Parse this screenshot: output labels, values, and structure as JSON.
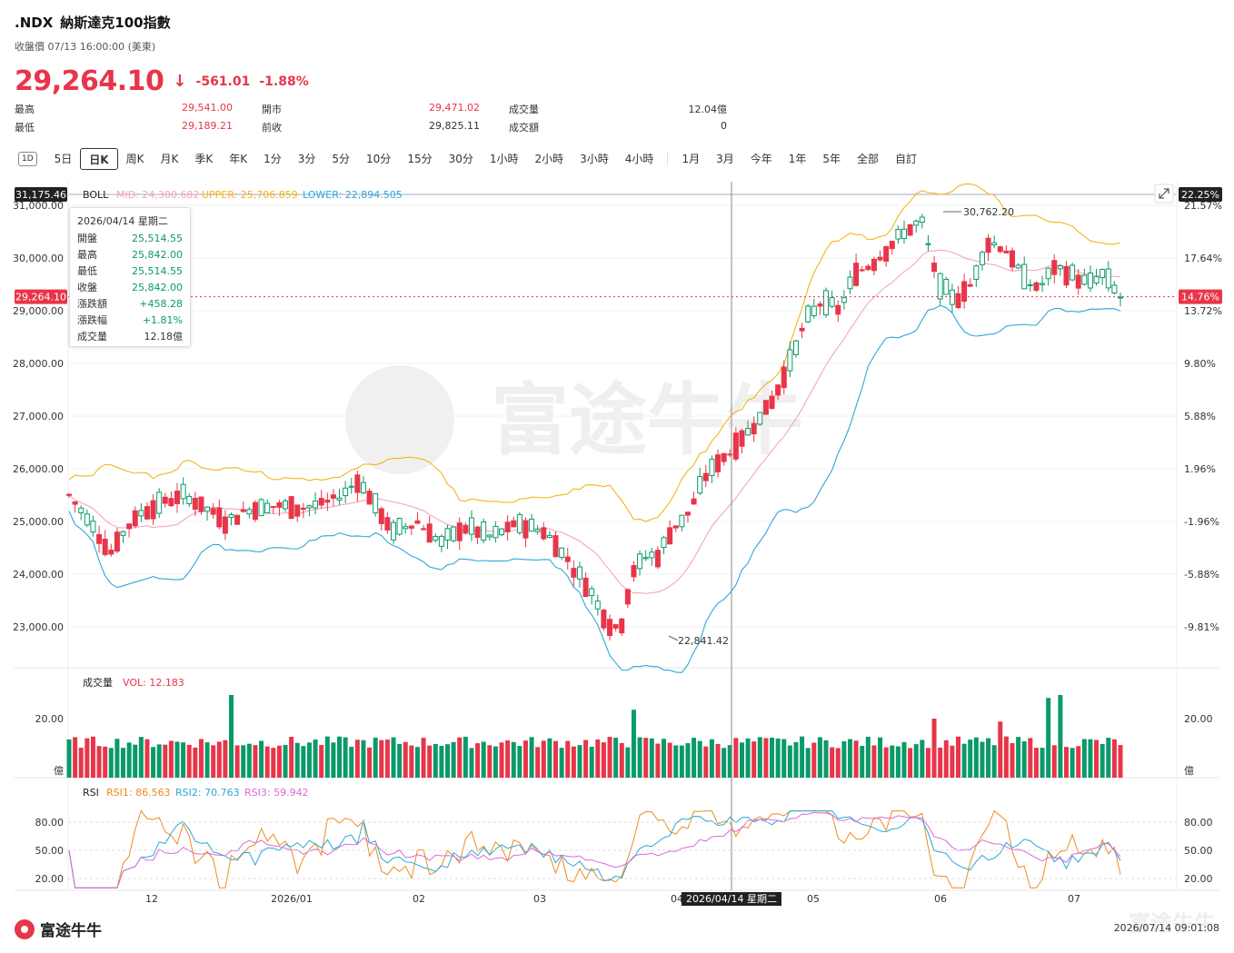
{
  "header": {
    "symbol": ".NDX",
    "name": "納斯達克100指數",
    "status": "收盤價 07/13 16:00:00 (美東)",
    "price": "29,264.10",
    "change": "-561.01",
    "change_pct": "-1.88%"
  },
  "stats": {
    "high_label": "最高",
    "high_value": "29,541.00",
    "low_label": "最低",
    "low_value": "29,189.21",
    "open_label": "開市",
    "open_value": "29,471.02",
    "prev_label": "前收",
    "prev_value": "29,825.11",
    "volume_label": "成交量",
    "volume_value": "12.04億",
    "turnover_label": "成交額",
    "turnover_value": "0"
  },
  "periods": [
    "5日",
    "日K",
    "周K",
    "月K",
    "季K",
    "年K",
    "1分",
    "3分",
    "5分",
    "10分",
    "15分",
    "30分",
    "1小時",
    "2小時",
    "3小時",
    "4小時",
    "1月",
    "3月",
    "今年",
    "1年",
    "5年",
    "全部",
    "自訂"
  ],
  "period_icon_label": "1D",
  "boll": {
    "label": "BOLL",
    "mid": "MID: 24,300.682",
    "upper": "UPPER: 25,706.859",
    "lower": "LOWER: 22,894.505",
    "top_price_tag": "31,175.46",
    "top_pct_tag": "22.25%",
    "current_price_tag": "29,264.10",
    "current_pct_tag": "14.76%",
    "high_annotation": "30,762.20",
    "low_annotation": "22,841.42"
  },
  "price_axis": [
    "31,000.00",
    "30,000.00",
    "29,000.00",
    "28,000.00",
    "27,000.00",
    "26,000.00",
    "25,000.00",
    "24,000.00",
    "23,000.00"
  ],
  "pct_axis": [
    "21.57%",
    "17.64%",
    "13.72%",
    "9.80%",
    "5.88%",
    "1.96%",
    "-1.96%",
    "-5.88%",
    "-9.81%"
  ],
  "tooltip": {
    "date": "2026/04/14 星期二",
    "rows": [
      {
        "k": "開盤",
        "v": "25,514.55"
      },
      {
        "k": "最高",
        "v": "25,842.00"
      },
      {
        "k": "最低",
        "v": "25,514.55"
      },
      {
        "k": "收盤",
        "v": "25,842.00"
      },
      {
        "k": "漲跌額",
        "v": "+458.28"
      },
      {
        "k": "漲跌幅",
        "v": "+1.81%"
      },
      {
        "k": "成交量",
        "v": "12.18億"
      }
    ]
  },
  "volume_panel": {
    "label": "成交量",
    "vol": "VOL: 12.183",
    "axis_top": "20.00",
    "axis_unit": "億"
  },
  "rsi_panel": {
    "label": "RSI",
    "rsi1": "RSI1: 86.563",
    "rsi2": "RSI2: 70.763",
    "rsi3": "RSI3: 59.942",
    "axis": [
      "80.00",
      "50.00",
      "20.00"
    ]
  },
  "x_axis": [
    "12",
    "2026/01",
    "02",
    "03",
    "04",
    "05",
    "06",
    "07"
  ],
  "crosshair_date": "2026/04/14 星期二",
  "footer": {
    "brand": "富途牛牛",
    "timestamp": "2026/07/14 09:01:08"
  },
  "colors": {
    "up": "#0a9a6a",
    "down": "#e8354a",
    "mid": "#f4a6b6",
    "upper": "#f5b51b",
    "lower": "#2ba8d8",
    "rsi1": "#f08a1c",
    "rsi2": "#2ba8d8",
    "rsi3": "#d96ad6"
  },
  "chart_data": {
    "type": "candlestick",
    "note_period": "daily",
    "ylim": [
      22400,
      31300
    ],
    "anchor_levels": {
      "first_close": 25500,
      "trough": 22841.42,
      "peak": 30762.2,
      "last_close": 29264.1
    },
    "boll_upper_ylim": [
      25706.859,
      31000
    ],
    "rsi_ylim": [
      0,
      100
    ]
  }
}
